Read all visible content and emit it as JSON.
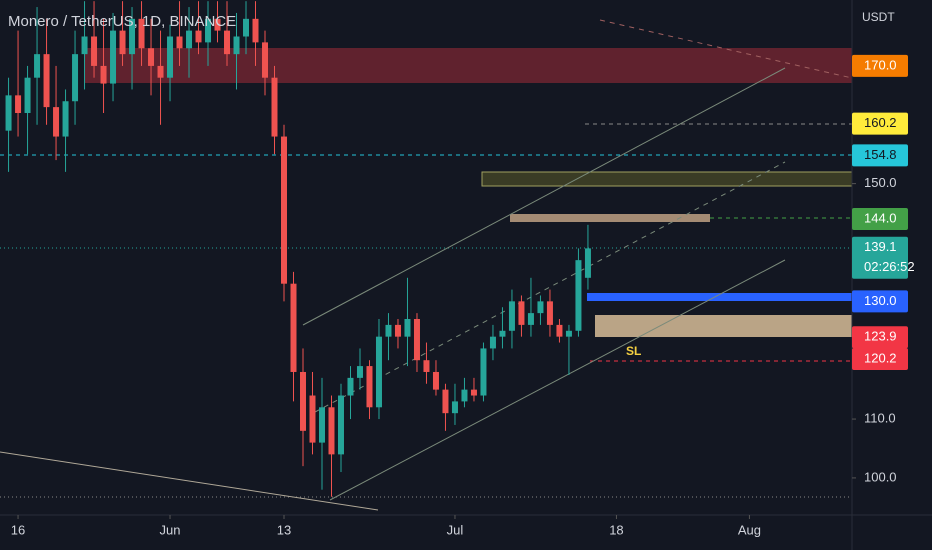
{
  "chart_data": {
    "type": "candlestick",
    "title": "Monero / TetherUS, 1D, BINANCE",
    "currency": "USDT",
    "annotation": "SL",
    "up_color": "#26a69a",
    "down_color": "#ef5350",
    "x": [
      -1,
      0,
      1,
      2,
      3,
      4,
      5,
      6,
      7,
      8,
      9,
      10,
      11,
      12,
      13,
      14,
      15,
      16,
      17,
      18,
      19,
      20,
      21,
      22,
      23,
      24,
      25,
      26,
      27,
      28,
      29,
      30,
      31,
      32,
      33,
      34,
      35,
      36,
      37,
      38,
      39,
      40,
      41,
      42,
      43,
      44,
      45,
      46,
      47,
      48,
      49,
      50,
      51,
      52,
      53,
      54,
      55,
      56,
      57,
      58,
      59,
      60
    ],
    "open": [
      159,
      165,
      162,
      168,
      172,
      163,
      158,
      164,
      172,
      175,
      170,
      167,
      176,
      172,
      178,
      173,
      170,
      168,
      175,
      173,
      176,
      174,
      178,
      176,
      172,
      175,
      178,
      174,
      168,
      158,
      133,
      118,
      114,
      106,
      112,
      104,
      114,
      117,
      119,
      112,
      124,
      126,
      124,
      127,
      120,
      118,
      115,
      111,
      113,
      115,
      114,
      122,
      124,
      125,
      130,
      126,
      128,
      130,
      126,
      124,
      125,
      134
    ],
    "high": [
      168,
      176,
      170,
      180,
      178,
      170,
      166,
      176,
      181,
      181,
      178,
      179,
      181,
      180,
      181,
      178,
      176,
      177,
      181,
      180,
      181,
      181,
      181,
      181,
      179,
      181,
      181,
      176,
      170,
      160,
      135,
      122,
      118,
      117,
      114,
      116,
      119,
      122,
      120,
      127,
      128,
      127,
      134,
      128,
      123,
      120,
      116,
      116,
      117,
      117,
      123,
      126,
      129,
      132,
      131,
      134,
      131,
      132,
      127,
      126,
      139,
      143
    ],
    "low": [
      152,
      158,
      155,
      160,
      160,
      154,
      152,
      160,
      166,
      168,
      162,
      164,
      170,
      166,
      170,
      165,
      160,
      164,
      170,
      168,
      172,
      170,
      174,
      170,
      166,
      172,
      170,
      165,
      155,
      130,
      113,
      102,
      104,
      98,
      96.8,
      101,
      110,
      115,
      110,
      110,
      120,
      122,
      119,
      118,
      116,
      114,
      108,
      109,
      112,
      113,
      113,
      120,
      122,
      122,
      124,
      124,
      126,
      124,
      123,
      117.5,
      124,
      132
    ],
    "close": [
      165,
      162,
      168,
      172,
      163,
      158,
      164,
      172,
      175,
      170,
      167,
      176,
      172,
      178,
      173,
      170,
      168,
      175,
      173,
      176,
      174,
      178,
      176,
      172,
      175,
      178,
      174,
      168,
      158,
      133,
      118,
      108,
      106,
      112,
      104,
      114,
      117,
      119,
      112,
      124,
      126,
      124,
      127,
      120,
      118,
      115,
      111,
      113,
      115,
      114,
      122,
      124,
      125,
      130,
      126,
      128,
      130,
      126,
      124,
      125,
      137,
      139
    ],
    "xlim": [
      -1.9,
      87.8
    ],
    "xticks": [
      {
        "value": 0,
        "label": "16"
      },
      {
        "value": 16,
        "label": "Jun"
      },
      {
        "value": 28,
        "label": "13"
      },
      {
        "value": 46,
        "label": "Jul"
      },
      {
        "value": 63,
        "label": "18"
      },
      {
        "value": 77,
        "label": "Aug"
      }
    ],
    "ylim": [
      93.7,
      181.2
    ],
    "yticks": [
      {
        "value": 100,
        "label": "100.0"
      },
      {
        "value": 110,
        "label": "110.0"
      },
      {
        "value": 150,
        "label": "150.0"
      }
    ],
    "price_labels": [
      {
        "value": 170,
        "label": "170.0",
        "color": "#f57c00",
        "text_color": "#ffffff"
      },
      {
        "value": 160.2,
        "label": "160.2",
        "color": "#ffeb3b",
        "text_color": "#131722"
      },
      {
        "value": 154.8,
        "label": "154.8",
        "color": "#26c6da",
        "text_color": "#131722"
      },
      {
        "value": 144,
        "label": "144.0",
        "color": "#43a047",
        "text_color": "#ffffff"
      },
      {
        "value": 130,
        "label": "130.0",
        "color": "#2962ff",
        "text_color": "#ffffff"
      },
      {
        "value": 123.9,
        "label": "123.9",
        "color": "#f23645",
        "text_color": "#ffffff"
      },
      {
        "value": 120.2,
        "label": "120.2",
        "color": "#f23645",
        "text_color": "#ffffff"
      }
    ],
    "last_price": {
      "value": 139.1,
      "label": "139.1",
      "countdown": "02:26:52",
      "color": "#26a69a"
    }
  }
}
